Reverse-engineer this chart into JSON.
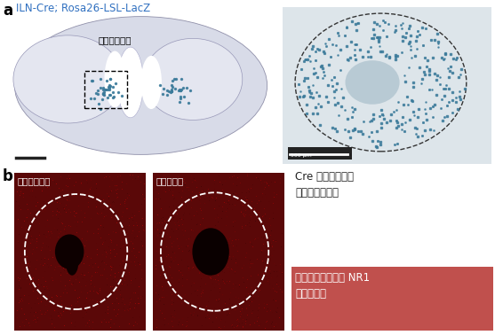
{
  "panel_a_label": "a",
  "panel_b_label": "b",
  "title_text": "ILN-Cre; Rosa26-LSL-LacZ",
  "label_iln": "視床髓板内核",
  "label_control": "コントロール",
  "label_mutant": "変異マウス",
  "label_cre_line1": "Cre 遠伝子組換え",
  "label_cre_line2": "が起こった細胞",
  "label_nr1_line1": "視床髓板内核での NR1",
  "label_nr1_line2": "発現が低下",
  "bg_color": "#ffffff",
  "brain_bg_outer": "#d8dbe8",
  "brain_bg_inner": "#e4e6f0",
  "brain_cortex_color": "#c8cce0",
  "blue_dot_color": "#3a7a9a",
  "zoom_bg": "#dde5ea",
  "zoom_inner_color": "#b8cad4",
  "red_dark": "#5a0808",
  "red_mid": "#8b1010",
  "red_bg_box": "#c0504d",
  "scalebar_color": "#222222",
  "white": "#ffffff",
  "text_color": "#222222",
  "blue_label": "#3070c0"
}
